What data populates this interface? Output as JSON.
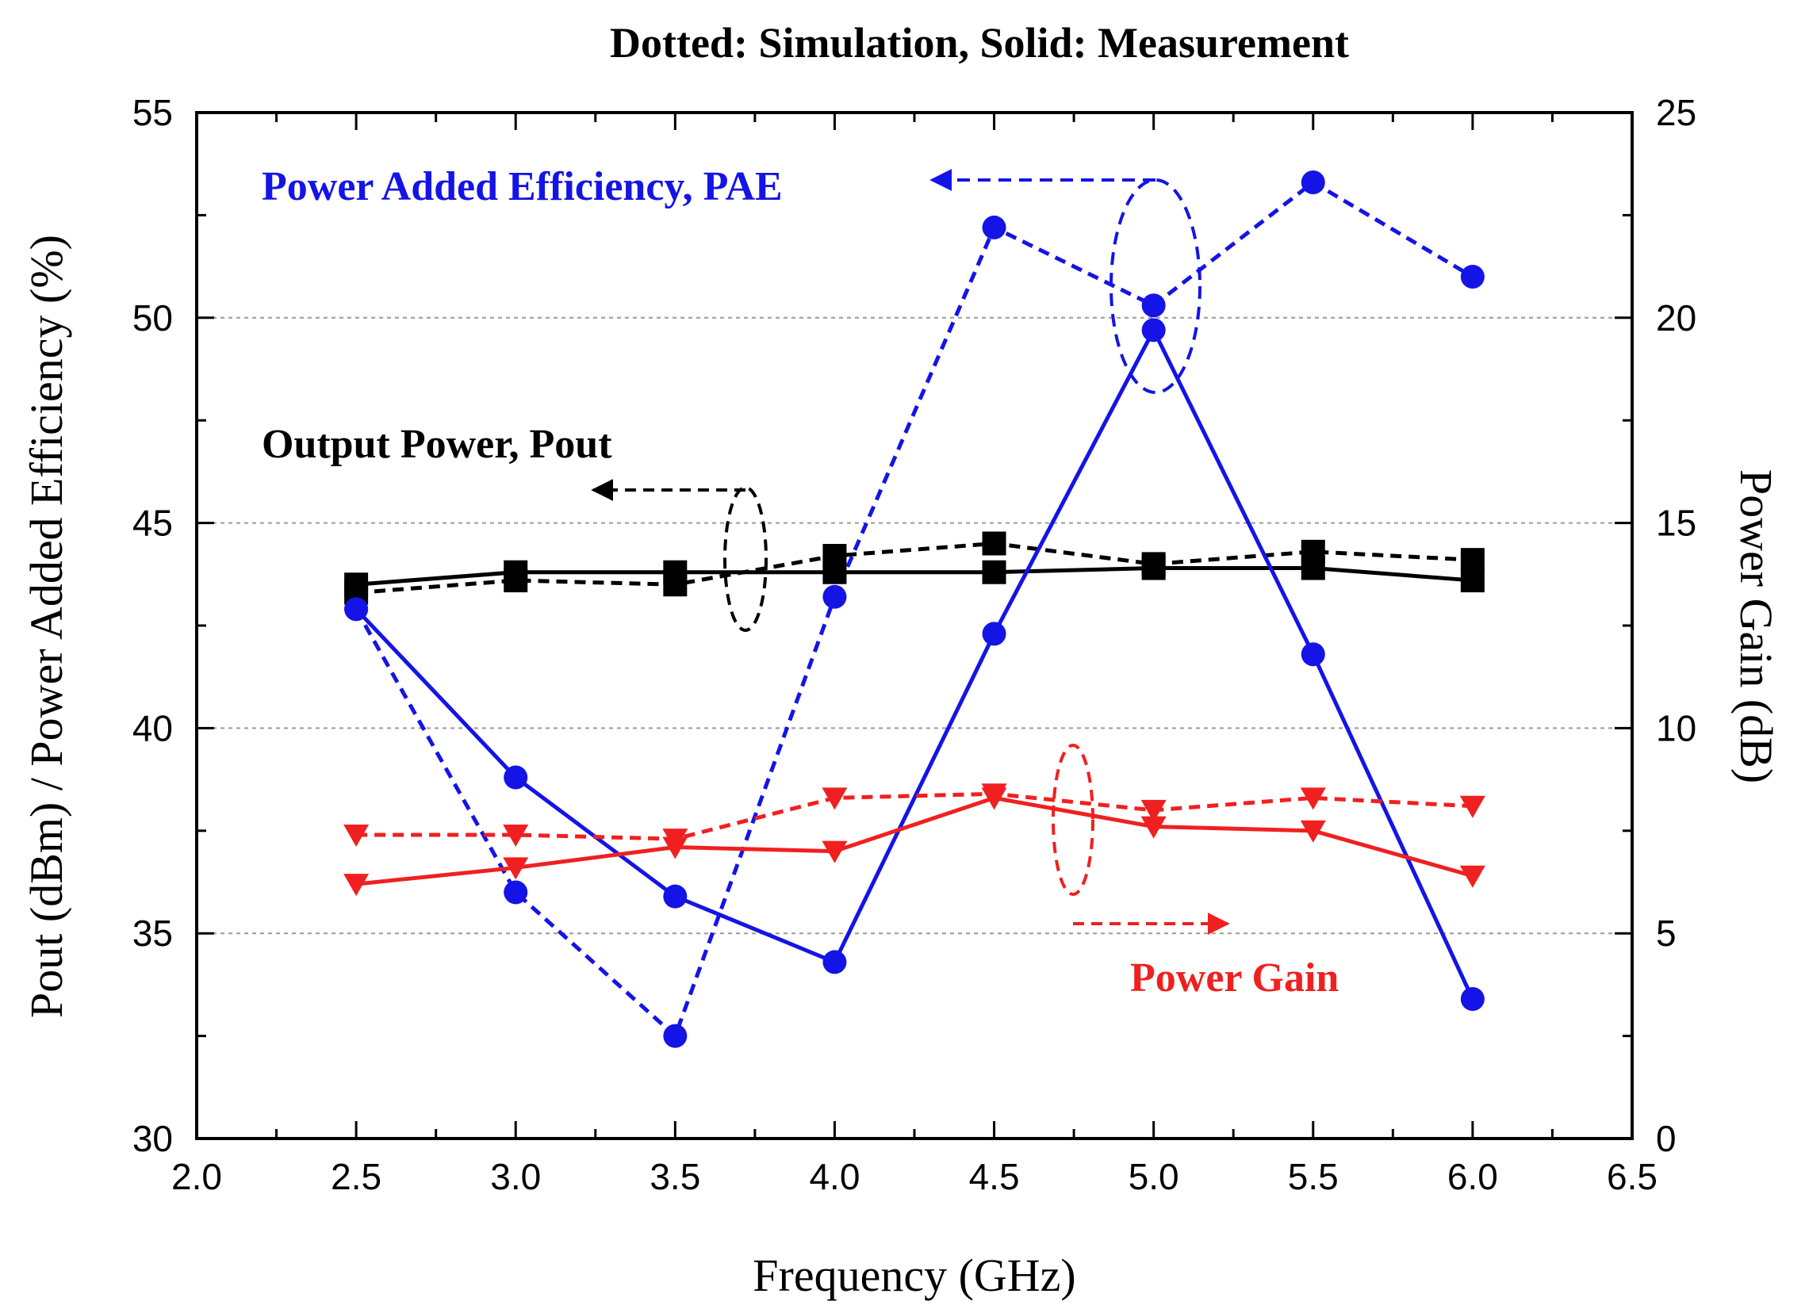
{
  "chart_data": {
    "type": "line",
    "title": "Dotted: Simulation, Solid: Measurement",
    "xlabel": "Frequency (GHz)",
    "ylabel": "Pout (dBm) / Power Added Efficiency (%)",
    "y2label": "Power Gain (dB)",
    "xlim": [
      2.0,
      6.5
    ],
    "ylim": [
      30,
      55
    ],
    "y2lim": [
      0,
      25
    ],
    "x_ticks": [
      2.0,
      2.5,
      3.0,
      3.5,
      4.0,
      4.5,
      5.0,
      5.5,
      6.0,
      6.5
    ],
    "x_tick_labels": [
      "2.0",
      "2.5",
      "3.0",
      "3.5",
      "4.0",
      "4.5",
      "5.0",
      "5.5",
      "6.0",
      "6.5"
    ],
    "y_ticks": [
      30,
      35,
      40,
      45,
      50,
      55
    ],
    "y_tick_labels": [
      "30",
      "35",
      "40",
      "45",
      "50",
      "55"
    ],
    "y2_ticks": [
      0,
      5,
      10,
      15,
      20,
      25
    ],
    "y2_tick_labels": [
      "0",
      "5",
      "10",
      "15",
      "20",
      "25"
    ],
    "grid": "horizontal dotted at major y ticks",
    "x": [
      2.5,
      3.0,
      3.5,
      4.0,
      4.5,
      5.0,
      5.5,
      6.0
    ],
    "series": [
      {
        "name": "Pout simulation",
        "axis": "left",
        "style": "dotted",
        "marker": "square",
        "color": "#000000",
        "values": [
          43.3,
          43.6,
          43.5,
          44.2,
          44.5,
          44.0,
          44.3,
          44.1
        ]
      },
      {
        "name": "Pout measurement",
        "axis": "left",
        "style": "solid",
        "marker": "square",
        "color": "#000000",
        "values": [
          43.5,
          43.8,
          43.8,
          43.8,
          43.8,
          43.9,
          43.9,
          43.6
        ]
      },
      {
        "name": "PAE simulation",
        "axis": "left",
        "style": "dotted",
        "marker": "circle",
        "color": "#1414e6",
        "values": [
          42.9,
          36.0,
          32.5,
          43.2,
          52.2,
          50.3,
          53.3,
          51.0
        ]
      },
      {
        "name": "PAE measurement",
        "axis": "left",
        "style": "solid",
        "marker": "circle",
        "color": "#1414e6",
        "values": [
          42.9,
          38.8,
          35.9,
          34.3,
          42.3,
          49.7,
          41.8,
          33.4
        ]
      },
      {
        "name": "Power Gain simulation",
        "axis": "right",
        "style": "dotted",
        "marker": "triangle-down",
        "color": "#f02020",
        "values": [
          7.4,
          7.4,
          7.3,
          8.3,
          8.4,
          8.0,
          8.3,
          8.1
        ]
      },
      {
        "name": "Power Gain measurement",
        "axis": "right",
        "style": "solid",
        "marker": "triangle-down",
        "color": "#f02020",
        "values": [
          6.2,
          6.6,
          7.1,
          7.0,
          8.3,
          7.6,
          7.5,
          6.4
        ]
      }
    ],
    "annotations": [
      {
        "text": "Power Added Efficiency, PAE",
        "color": "#1414e6",
        "points_to": "left axis"
      },
      {
        "text": "Output Power, Pout",
        "color": "#000000",
        "points_to": "left axis"
      },
      {
        "text": "Power Gain",
        "color": "#f02020",
        "points_to": "right axis"
      }
    ]
  }
}
